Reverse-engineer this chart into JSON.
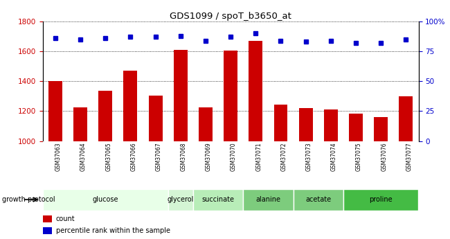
{
  "title": "GDS1099 / spoT_b3650_at",
  "samples": [
    "GSM37063",
    "GSM37064",
    "GSM37065",
    "GSM37066",
    "GSM37067",
    "GSM37068",
    "GSM37069",
    "GSM37070",
    "GSM37071",
    "GSM37072",
    "GSM37073",
    "GSM37074",
    "GSM37075",
    "GSM37076",
    "GSM37077"
  ],
  "counts": [
    1400,
    1225,
    1335,
    1470,
    1305,
    1610,
    1225,
    1605,
    1670,
    1245,
    1220,
    1210,
    1185,
    1160,
    1300
  ],
  "percentiles": [
    86,
    85,
    86,
    87,
    87,
    88,
    84,
    87,
    90,
    84,
    83,
    84,
    82,
    82,
    85
  ],
  "ylim_left": [
    1000,
    1800
  ],
  "ylim_right": [
    0,
    100
  ],
  "yticks_left": [
    1000,
    1200,
    1400,
    1600,
    1800
  ],
  "yticks_right": [
    0,
    25,
    50,
    75,
    100
  ],
  "yticklabels_right": [
    "0",
    "25",
    "50",
    "75",
    "100%"
  ],
  "bar_color": "#cc0000",
  "dot_color": "#0000cc",
  "groups": [
    {
      "label": "glucose",
      "start": 0,
      "end": 4,
      "color": "#e8ffe8"
    },
    {
      "label": "glycerol",
      "start": 5,
      "end": 5,
      "color": "#d4f5d4"
    },
    {
      "label": "succinate",
      "start": 6,
      "end": 7,
      "color": "#b8edb8"
    },
    {
      "label": "alanine",
      "start": 8,
      "end": 9,
      "color": "#7dcc7d"
    },
    {
      "label": "acetate",
      "start": 10,
      "end": 11,
      "color": "#7dcc7d"
    },
    {
      "label": "proline",
      "start": 12,
      "end": 14,
      "color": "#44bb44"
    }
  ],
  "growth_protocol_label": "growth protocol",
  "legend_count_label": "count",
  "legend_pct_label": "percentile rank within the sample",
  "tick_label_color_left": "#cc0000",
  "tick_label_color_right": "#0000cc",
  "background_color": "#ffffff",
  "xticklabels_bg": "#c8c8c8"
}
